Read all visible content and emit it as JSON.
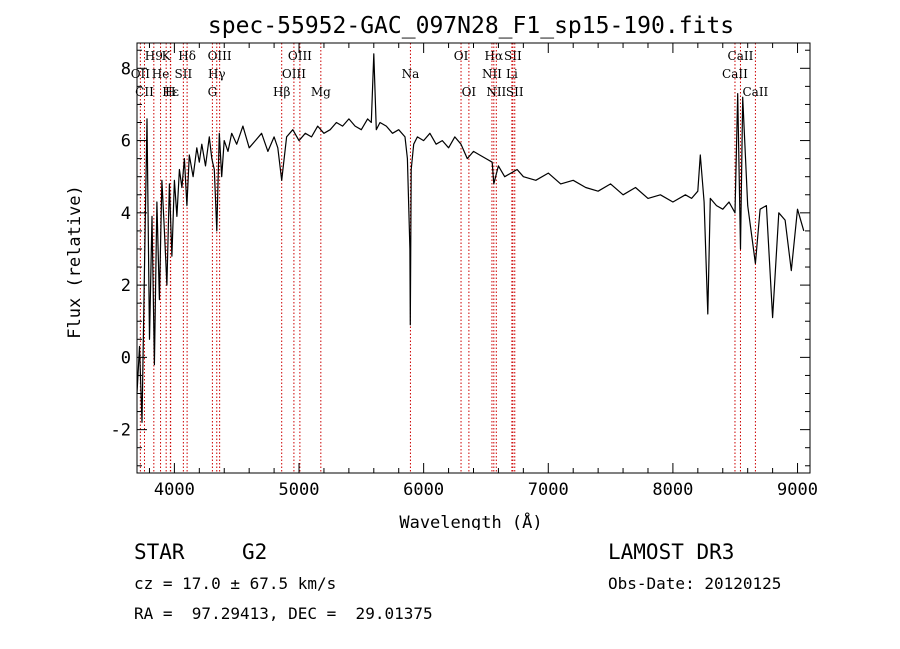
{
  "chart_data": {
    "type": "line",
    "title": "spec-55952-GAC_097N28_F1_sp15-190.fits",
    "xlabel": "Wavelength (Å)",
    "ylabel": "Flux (relative)",
    "xlim": [
      3700,
      9100
    ],
    "ylim": [
      -3.2,
      8.7
    ],
    "x_ticks": [
      4000,
      5000,
      6000,
      7000,
      8000,
      9000
    ],
    "y_ticks": [
      -2,
      0,
      2,
      4,
      6,
      8
    ],
    "series": [
      {
        "name": "spectrum",
        "x": [
          3700,
          3720,
          3740,
          3760,
          3780,
          3800,
          3820,
          3840,
          3860,
          3880,
          3900,
          3920,
          3940,
          3960,
          3980,
          4000,
          4020,
          4040,
          4060,
          4080,
          4100,
          4120,
          4150,
          4180,
          4200,
          4220,
          4250,
          4280,
          4300,
          4320,
          4340,
          4360,
          4380,
          4400,
          4430,
          4460,
          4500,
          4550,
          4600,
          4650,
          4700,
          4750,
          4800,
          4830,
          4861,
          4900,
          4950,
          5000,
          5050,
          5100,
          5150,
          5200,
          5250,
          5300,
          5350,
          5400,
          5450,
          5500,
          5550,
          5580,
          5600,
          5620,
          5650,
          5700,
          5750,
          5800,
          5850,
          5870,
          5890,
          5893,
          5900,
          5920,
          5950,
          6000,
          6050,
          6100,
          6150,
          6200,
          6250,
          6300,
          6350,
          6400,
          6450,
          6500,
          6550,
          6563,
          6600,
          6650,
          6700,
          6750,
          6800,
          6900,
          7000,
          7100,
          7200,
          7300,
          7400,
          7500,
          7600,
          7700,
          7800,
          7900,
          8000,
          8100,
          8150,
          8200,
          8220,
          8250,
          8280,
          8300,
          8350,
          8400,
          8450,
          8498,
          8520,
          8542,
          8560,
          8600,
          8662,
          8700,
          8750,
          8800,
          8850,
          8900,
          8950,
          9000,
          9050
        ],
        "y": [
          -1.0,
          0.3,
          -1.8,
          2.5,
          6.6,
          0.5,
          3.9,
          -0.2,
          4.3,
          1.6,
          4.9,
          3.5,
          2.0,
          4.8,
          2.8,
          4.9,
          3.9,
          5.2,
          4.7,
          5.5,
          4.2,
          5.6,
          5.0,
          5.8,
          5.4,
          5.9,
          5.3,
          6.1,
          5.5,
          5.2,
          3.5,
          6.2,
          5.0,
          6.0,
          5.7,
          6.2,
          5.9,
          6.4,
          5.8,
          6.0,
          6.2,
          5.7,
          6.1,
          5.8,
          4.9,
          6.1,
          6.3,
          6.0,
          6.2,
          6.1,
          6.4,
          6.2,
          6.3,
          6.5,
          6.4,
          6.6,
          6.4,
          6.3,
          6.6,
          6.5,
          8.4,
          6.3,
          6.5,
          6.4,
          6.2,
          6.3,
          6.1,
          5.5,
          3.0,
          0.9,
          5.2,
          5.9,
          6.1,
          6.0,
          6.2,
          5.9,
          6.0,
          5.8,
          6.1,
          5.9,
          5.5,
          5.7,
          5.6,
          5.5,
          5.4,
          4.8,
          5.3,
          5.0,
          5.1,
          5.2,
          5.0,
          4.9,
          5.1,
          4.8,
          4.9,
          4.7,
          4.6,
          4.8,
          4.5,
          4.7,
          4.4,
          4.5,
          4.3,
          4.5,
          4.4,
          4.6,
          5.6,
          4.3,
          1.2,
          4.4,
          4.2,
          4.1,
          4.3,
          4.0,
          7.3,
          3.0,
          7.2,
          4.2,
          2.6,
          4.1,
          4.2,
          1.1,
          4.0,
          3.8,
          2.4,
          4.1,
          3.5
        ]
      }
    ],
    "line_markers": [
      {
        "name": "H9",
        "wl": 3835,
        "row": 1
      },
      {
        "name": "OII",
        "wl": 3727,
        "row": 2
      },
      {
        "name": "CII",
        "wl": 3760,
        "row": 3
      },
      {
        "name": "He",
        "wl": 3889,
        "row": 2
      },
      {
        "name": "K",
        "wl": 3934,
        "row": 1
      },
      {
        "name": "Hε",
        "wl": 3970,
        "row": 3
      },
      {
        "name": "SII",
        "wl": 4072,
        "row": 2
      },
      {
        "name": "H",
        "wl": 3968,
        "row": 3
      },
      {
        "name": "Hδ",
        "wl": 4102,
        "row": 1
      },
      {
        "name": "OIII",
        "wl": 4363,
        "row": 1
      },
      {
        "name": "Hγ",
        "wl": 4340,
        "row": 2
      },
      {
        "name": "G",
        "wl": 4305,
        "row": 3
      },
      {
        "name": "Hβ",
        "wl": 4861,
        "row": 3
      },
      {
        "name": "OIII",
        "wl": 5007,
        "row": 1
      },
      {
        "name": "OIII",
        "wl": 4959,
        "row": 2
      },
      {
        "name": "Mg",
        "wl": 5175,
        "row": 3
      },
      {
        "name": "Na",
        "wl": 5894,
        "row": 2
      },
      {
        "name": "OI",
        "wl": 6300,
        "row": 1
      },
      {
        "name": "OI",
        "wl": 6363,
        "row": 3
      },
      {
        "name": "Hα",
        "wl": 6563,
        "row": 1
      },
      {
        "name": "NII",
        "wl": 6548,
        "row": 2
      },
      {
        "name": "NII",
        "wl": 6583,
        "row": 3
      },
      {
        "name": "SII",
        "wl": 6716,
        "row": 1
      },
      {
        "name": "Li",
        "wl": 6708,
        "row": 2
      },
      {
        "name": "SII",
        "wl": 6731,
        "row": 3
      },
      {
        "name": "CaII",
        "wl": 8542,
        "row": 1
      },
      {
        "name": "CaII",
        "wl": 8498,
        "row": 2
      },
      {
        "name": "CaII",
        "wl": 8662,
        "row": 3
      }
    ]
  },
  "info": {
    "class_label": "STAR",
    "subclass": "G2",
    "survey": "LAMOST DR3",
    "cz": "cz = 17.0 ± 67.5 km/s",
    "obs_date": "Obs-Date: 20120125",
    "coords": "RA =  97.29413, DEC =  29.01375"
  },
  "colors": {
    "axis": "#000000",
    "marker": "#cc0000",
    "spectrum": "#000000"
  }
}
